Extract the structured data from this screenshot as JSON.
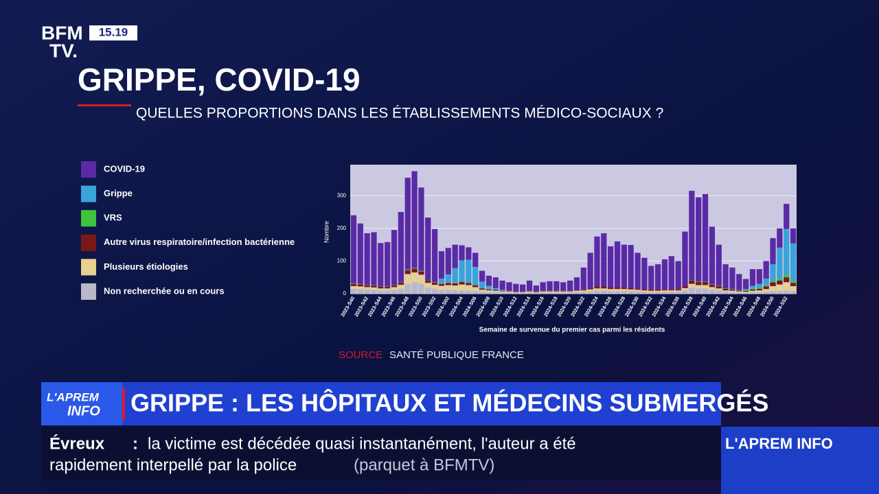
{
  "header": {
    "logo_line1": "BFM",
    "logo_line2": "TV.",
    "time": "15.19",
    "title": "GRIPPE, COVID-19",
    "subtitle": "QUELLES PROPORTIONS DANS LES ÉTABLISSEMENTS MÉDICO-SOCIAUX ?"
  },
  "source": {
    "label": "SOURCE",
    "text": "SANTÉ PUBLIQUE FRANCE"
  },
  "banner": {
    "logo_line1": "L'APREM",
    "logo_line2": "INFO",
    "headline": "GRIPPE : LES HÔPITAUX ET MÉDECINS SUBMERGÉS"
  },
  "ticker": {
    "place": "Évreux",
    "separator": ":",
    "line1": "la victime est décédée quasi instantanément, l'auteur a été",
    "line2": "rapidement interpellé par la police",
    "credit": "(parquet à BFMTV)",
    "program": "L'APREM INFO"
  },
  "chart_data": {
    "type": "bar",
    "stacked": true,
    "y_label": "Nombre",
    "x_label": "Semaine de survenue du premier cas parmi les résidents",
    "categories": [
      "2023-S40",
      null,
      "2023-S42",
      null,
      "2023-S44",
      null,
      "2023-S46",
      null,
      "2023-S48",
      null,
      "2023-S50",
      null,
      "2023-S52",
      null,
      "2024-S02",
      null,
      "2024-S04",
      null,
      "2024-S06",
      null,
      "2024-S08",
      null,
      "2024-S10",
      null,
      "2024-S12",
      null,
      "2024-S14",
      null,
      "2024-S16",
      null,
      "2024-S18",
      null,
      "2024-S20",
      null,
      "2024-S22",
      null,
      "2024-S24",
      null,
      "2024-S26",
      null,
      "2024-S28",
      null,
      "2024-S30",
      null,
      "2024-S32",
      null,
      "2024-S34",
      null,
      "2024-S36",
      null,
      "2024-S38",
      null,
      "2024-S40",
      null,
      "2024-S42",
      null,
      "2024-S44",
      null,
      "2024-S46",
      null,
      "2024-S48",
      null,
      "2024-S50",
      null,
      "2024-S52",
      null
    ],
    "series": [
      {
        "name": "COVID-19",
        "color": "#5a2aa6",
        "values": [
          209,
          185,
          158,
          162,
          133,
          136,
          168,
          214,
          281,
          296,
          255,
          191,
          163,
          84,
          81,
          72,
          46,
          38,
          43,
          33,
          31,
          33,
          28,
          26,
          23,
          21,
          31,
          18,
          26,
          29,
          29,
          26,
          31,
          39,
          67,
          108,
          153,
          163,
          126,
          141,
          131,
          131,
          109,
          96,
          72,
          77,
          91,
          101,
          86,
          167,
          274,
          258,
          268,
          176,
          126,
          74,
          66,
          49,
          31,
          51,
          45,
          54,
          80,
          59,
          77,
          46
        ]
      },
      {
        "name": "Grippe",
        "color": "#3aa3da",
        "values": [
          0,
          0,
          0,
          0,
          0,
          0,
          0,
          0,
          0,
          0,
          0,
          0,
          0,
          15,
          25,
          45,
          65,
          70,
          55,
          20,
          10,
          5,
          3,
          0,
          0,
          0,
          0,
          0,
          0,
          0,
          0,
          0,
          0,
          0,
          0,
          0,
          0,
          0,
          0,
          0,
          0,
          0,
          0,
          0,
          0,
          0,
          0,
          0,
          0,
          0,
          0,
          0,
          0,
          0,
          0,
          0,
          0,
          0,
          3,
          8,
          12,
          20,
          50,
          95,
          140,
          115
        ]
      },
      {
        "name": "VRS",
        "color": "#3cc43c",
        "values": [
          1,
          1,
          1,
          1,
          1,
          1,
          1,
          1,
          2,
          2,
          2,
          1,
          1,
          1,
          1,
          1,
          1,
          1,
          1,
          1,
          1,
          0,
          0,
          0,
          0,
          0,
          0,
          0,
          0,
          0,
          0,
          0,
          0,
          0,
          0,
          0,
          0,
          0,
          0,
          0,
          0,
          0,
          0,
          0,
          0,
          0,
          0,
          0,
          0,
          0,
          1,
          1,
          1,
          1,
          1,
          1,
          1,
          1,
          2,
          3,
          3,
          4,
          5,
          6,
          8,
          6
        ]
      },
      {
        "name": "Autre virus respiratoire/infection bactérienne",
        "color": "#7a1818",
        "values": [
          7,
          7,
          6,
          6,
          5,
          5,
          6,
          8,
          12,
          12,
          10,
          8,
          7,
          6,
          7,
          7,
          8,
          7,
          6,
          4,
          3,
          3,
          2,
          2,
          2,
          2,
          2,
          2,
          2,
          2,
          2,
          2,
          2,
          2,
          3,
          4,
          6,
          6,
          5,
          5,
          5,
          5,
          4,
          4,
          4,
          4,
          4,
          4,
          4,
          6,
          10,
          10,
          10,
          8,
          7,
          5,
          4,
          3,
          3,
          4,
          5,
          8,
          12,
          12,
          15,
          10
        ]
      },
      {
        "name": "Plusieurs étiologies",
        "color": "#e8d08e",
        "values": [
          8,
          8,
          7,
          7,
          6,
          6,
          8,
          12,
          30,
          30,
          28,
          15,
          12,
          12,
          14,
          15,
          18,
          16,
          12,
          6,
          5,
          4,
          3,
          3,
          2,
          2,
          3,
          2,
          3,
          3,
          3,
          3,
          3,
          4,
          4,
          5,
          6,
          6,
          6,
          6,
          6,
          5,
          5,
          4,
          4,
          4,
          4,
          4,
          4,
          7,
          12,
          10,
          10,
          8,
          6,
          4,
          4,
          3,
          3,
          4,
          5,
          8,
          15,
          20,
          25,
          15
        ]
      },
      {
        "name": "Non recherchée ou en cours",
        "color": "#b8b8c6",
        "values": [
          15,
          14,
          13,
          12,
          10,
          10,
          12,
          15,
          30,
          35,
          30,
          18,
          15,
          12,
          12,
          10,
          10,
          10,
          8,
          6,
          5,
          5,
          4,
          4,
          3,
          3,
          4,
          3,
          4,
          4,
          4,
          4,
          4,
          5,
          6,
          8,
          10,
          10,
          8,
          8,
          8,
          8,
          7,
          6,
          5,
          5,
          6,
          6,
          6,
          10,
          18,
          16,
          16,
          12,
          10,
          6,
          5,
          4,
          3,
          5,
          5,
          6,
          8,
          8,
          10,
          8
        ]
      }
    ],
    "ylim": [
      0,
      395
    ],
    "yticks": [
      0,
      100,
      200,
      300
    ],
    "grid": true
  }
}
